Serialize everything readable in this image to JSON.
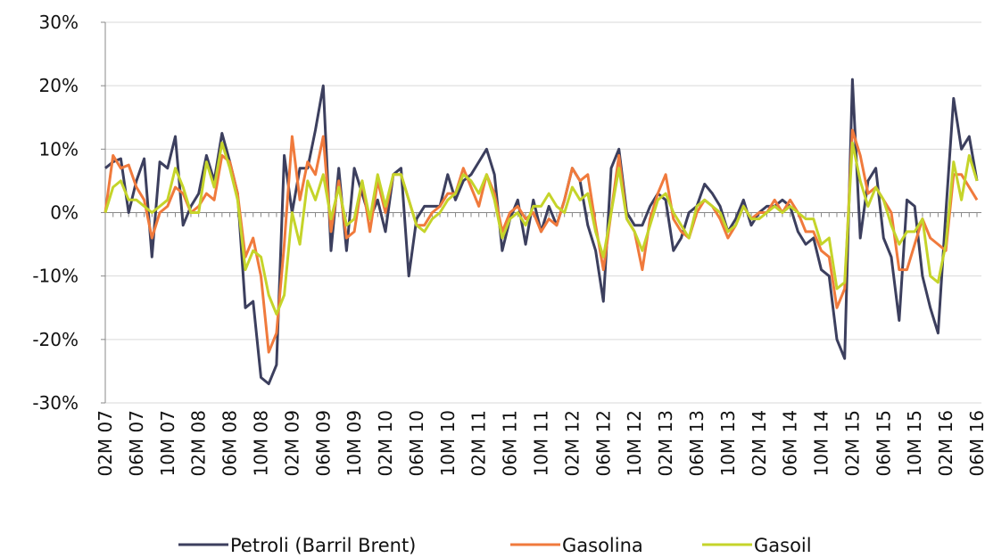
{
  "chart_data": {
    "type": "line",
    "categories": [
      "02M 07",
      null,
      null,
      null,
      "06M 07",
      null,
      null,
      null,
      "10M 07",
      null,
      null,
      null,
      "02M 08",
      null,
      null,
      null,
      "06M 08",
      null,
      null,
      null,
      "10M 08",
      null,
      null,
      null,
      "02M 09",
      null,
      null,
      null,
      "06M 09",
      null,
      null,
      null,
      "10M 09",
      null,
      null,
      null,
      "02M 10",
      null,
      null,
      null,
      "06M 10",
      null,
      null,
      null,
      "10M 10",
      null,
      null,
      null,
      "02M 11",
      null,
      null,
      null,
      "06M 11",
      null,
      null,
      null,
      "10M 11",
      null,
      null,
      null,
      "02M 12",
      null,
      null,
      null,
      "06M 12",
      null,
      null,
      null,
      "10M 12",
      null,
      null,
      null,
      "02M 13",
      null,
      null,
      null,
      "06M 13",
      null,
      null,
      null,
      "10M 13",
      null,
      null,
      null,
      "02M 14",
      null,
      null,
      null,
      "06M 14",
      null,
      null,
      null,
      "10M 14",
      null,
      null,
      null,
      "02M 15",
      null,
      null,
      null,
      "06M 15",
      null,
      null,
      null,
      "10M 15",
      null,
      null,
      null,
      "02M 16",
      null,
      null,
      null,
      "06M 16"
    ],
    "series": [
      {
        "name": "Petroli (Barril Brent)",
        "color": "#3c3f5e",
        "values": [
          7,
          8,
          8.5,
          0,
          5,
          8.5,
          -7,
          8,
          7,
          12,
          -2,
          1,
          3,
          9,
          5,
          12.5,
          8,
          3,
          -15,
          -14,
          -26,
          -27,
          -24,
          9,
          0,
          7,
          7,
          13,
          20,
          -6,
          7,
          -6,
          7,
          3,
          -1,
          2,
          -3,
          6,
          7,
          -10,
          -1,
          1,
          1,
          1,
          6,
          2,
          5,
          6,
          8,
          10,
          6,
          -6,
          -1,
          2,
          -5,
          2,
          -3,
          1,
          -2,
          2,
          7,
          5,
          -2,
          -6,
          -14,
          7,
          10,
          0,
          -2,
          -2,
          1,
          3,
          2,
          -6,
          -4,
          0,
          1,
          4.5,
          3,
          1,
          -3,
          -1,
          2,
          -2,
          0,
          1,
          1,
          2,
          1,
          -3,
          -5,
          -4,
          -9,
          -10,
          -20,
          -23,
          21,
          -4,
          5,
          7,
          -4,
          -7,
          -17,
          2,
          1,
          -10,
          -15,
          -19,
          0,
          18,
          10,
          12,
          5
        ]
      },
      {
        "name": "Gasolina",
        "color": "#f07a3c",
        "values": [
          0,
          9,
          7,
          7.5,
          4,
          2,
          -4,
          0,
          1,
          4,
          3,
          0,
          1,
          3,
          2,
          9,
          8,
          3,
          -7,
          -4,
          -10,
          -22,
          -19,
          -5,
          12,
          2,
          8,
          6,
          12,
          -3,
          5,
          -4,
          -3,
          5,
          -3,
          5,
          0,
          6,
          6,
          2,
          -2,
          -2,
          0,
          1,
          3,
          3,
          7,
          4,
          1,
          6,
          3,
          -3,
          0,
          1,
          -1,
          0,
          -3,
          -1,
          -2,
          2,
          7,
          5,
          6,
          -2,
          -9,
          0,
          9,
          -1,
          -3,
          -9,
          -1,
          3,
          6,
          -1,
          -3,
          -4,
          0,
          2,
          1,
          -1,
          -4,
          -2,
          1,
          -1,
          0,
          0,
          2,
          0,
          2,
          0,
          -3,
          -3,
          -6,
          -7,
          -15,
          -12,
          13,
          9,
          3,
          4,
          2,
          0,
          -9,
          -9,
          -5,
          -1,
          -4,
          -5,
          -6,
          6,
          6,
          4,
          2
        ]
      },
      {
        "name": "Gasoil",
        "color": "#c5d42a",
        "values": [
          0,
          4,
          5,
          2,
          2,
          1,
          0,
          1,
          2,
          7,
          4,
          0,
          0,
          8,
          4,
          11,
          7,
          2,
          -9,
          -6,
          -7,
          -13,
          -16,
          -13,
          0,
          -5,
          5,
          2,
          6,
          -1,
          4,
          -2,
          -1,
          5,
          -1,
          6,
          1,
          6,
          6,
          2,
          -2,
          -3,
          -1,
          0,
          2,
          3,
          6,
          5,
          3,
          6,
          2,
          -4,
          -1,
          0,
          -2,
          1,
          1,
          3,
          1,
          0,
          4,
          2,
          3,
          -3,
          -7,
          0,
          7,
          -1,
          -3,
          -6,
          -2,
          2,
          3,
          0,
          -2,
          -4,
          1,
          2,
          1,
          0,
          -3,
          -2,
          1,
          -1,
          -1,
          0,
          1,
          0,
          1,
          0,
          -1,
          -1,
          -5,
          -4,
          -12,
          -11,
          11,
          5,
          1,
          4,
          2,
          -2,
          -5,
          -3,
          -3,
          -1,
          -10,
          -11,
          -5,
          8,
          2,
          9,
          5
        ]
      }
    ],
    "ylim": [
      -30,
      30
    ],
    "yticks": [
      {
        "value": -30,
        "label": "-30%"
      },
      {
        "value": -20,
        "label": "-20%"
      },
      {
        "value": -10,
        "label": "-10%"
      },
      {
        "value": 0,
        "label": "0%"
      },
      {
        "value": 10,
        "label": "10%"
      },
      {
        "value": 20,
        "label": "20%"
      },
      {
        "value": 30,
        "label": "30%"
      }
    ],
    "grid": true,
    "legend": "bottom"
  }
}
